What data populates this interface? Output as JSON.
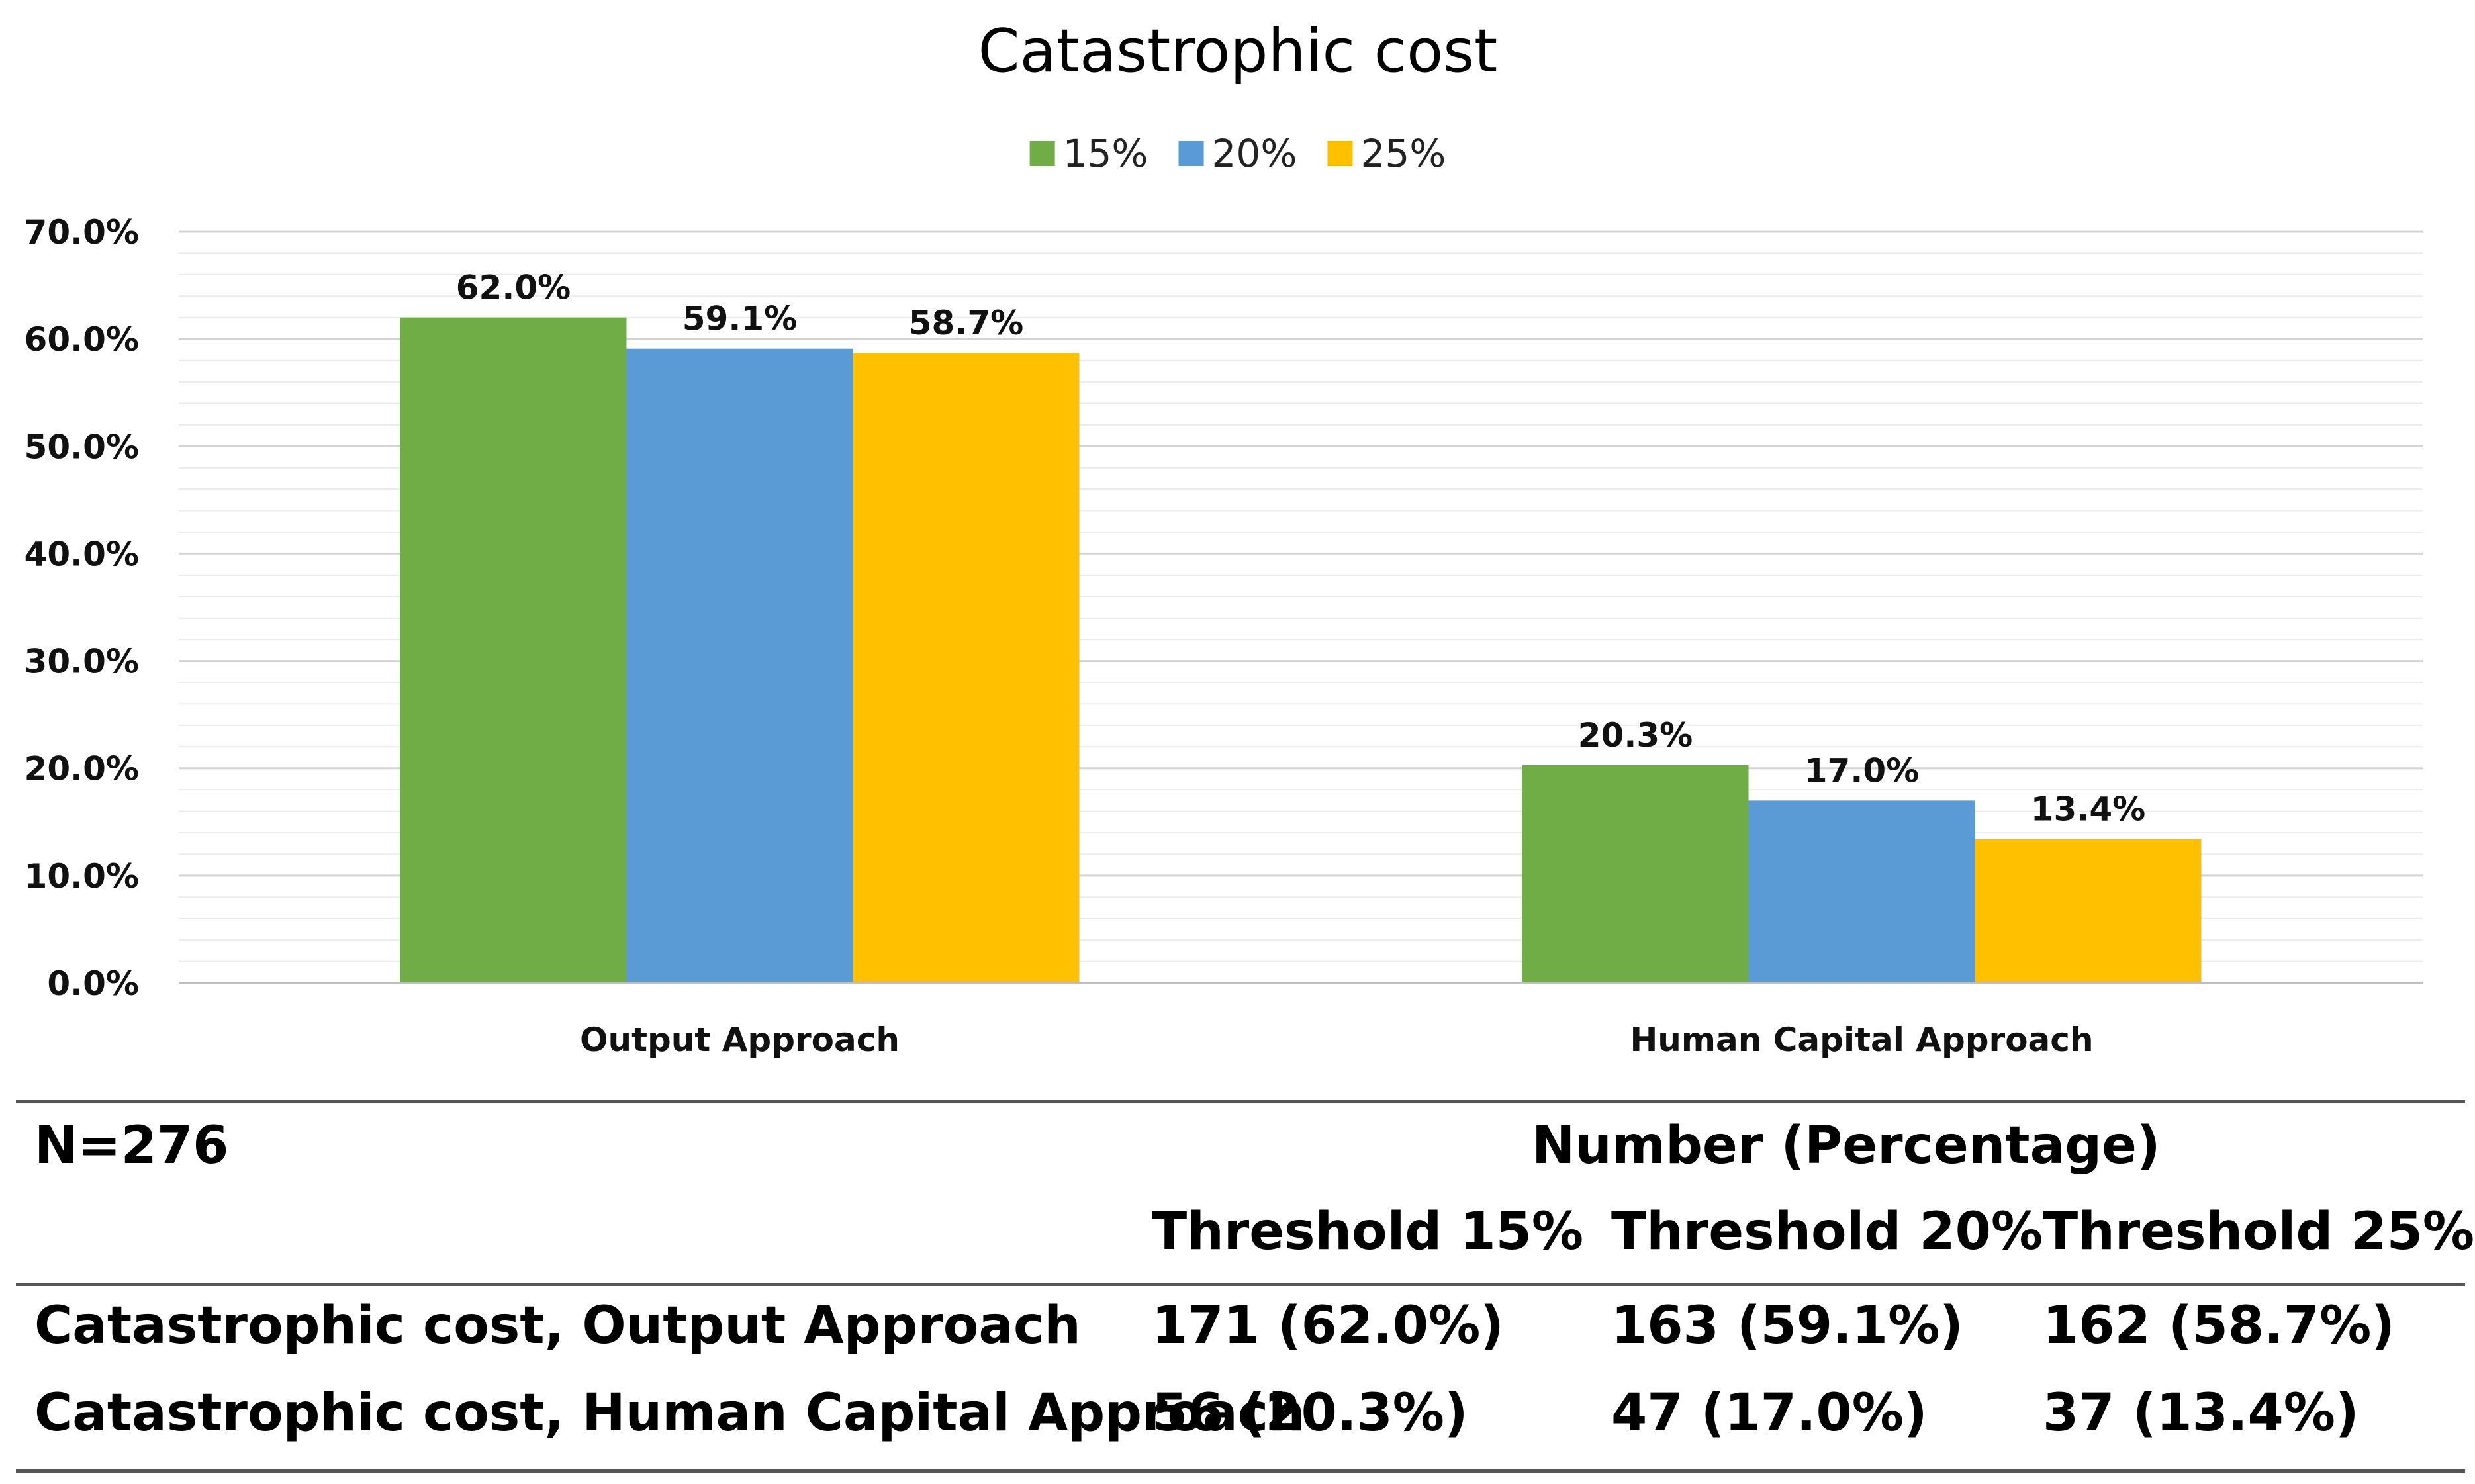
{
  "chart_data": {
    "type": "bar",
    "title": "Catastrophic cost",
    "categories": [
      "Output Approach",
      "Human Capital Approach"
    ],
    "series": [
      {
        "name": "15%",
        "color": "#70AD47",
        "values": [
          62.0,
          20.3
        ]
      },
      {
        "name": "20%",
        "color": "#5B9BD5",
        "values": [
          59.1,
          17.0
        ]
      },
      {
        "name": "25%",
        "color": "#FFC000",
        "values": [
          58.7,
          13.4
        ]
      }
    ],
    "ylim": [
      0,
      70
    ],
    "yticks": [
      "0.0%",
      "10.0%",
      "20.0%",
      "30.0%",
      "40.0%",
      "50.0%",
      "60.0%",
      "70.0%"
    ],
    "value_suffix": "%",
    "legend_position": "top-center",
    "grid": true,
    "xlabel": "",
    "ylabel": ""
  },
  "table": {
    "n_label": "N=276",
    "group_header": "Number (Percentage)",
    "columns": [
      "Threshold 15%",
      "Threshold 20%",
      "Threshold 25%"
    ],
    "rows": [
      {
        "label": "Catastrophic cost, Output  Approach",
        "cells": [
          "171 (62.0%)",
          "163 (59.1%)",
          "162 (58.7%)"
        ]
      },
      {
        "label": "Catastrophic cost, Human Capital Approach",
        "cells": [
          "56 (20.3%)",
          "47 (17.0%)",
          "37 (13.4%)"
        ]
      }
    ]
  }
}
